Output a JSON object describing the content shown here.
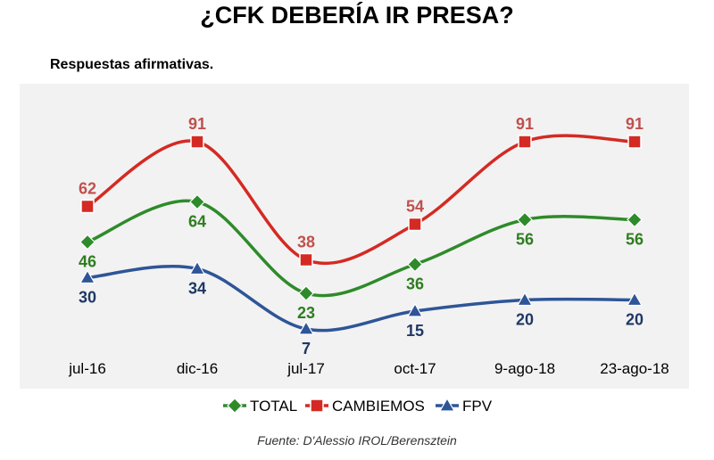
{
  "title": "¿CFK DEBERÍA IR PRESA?",
  "subtitle": "Respuestas afirmativas.",
  "source": "Fuente: D'Alessio IROL/Berensztein",
  "chart_data": {
    "type": "line",
    "categories": [
      "jul-16",
      "dic-16",
      "jul-17",
      "oct-17",
      "9-ago-18",
      "23-ago-18"
    ],
    "series": [
      {
        "name": "CAMBIEMOS",
        "values": [
          62,
          91,
          38,
          54,
          91,
          91
        ],
        "color": "#d42a23",
        "label_color": "#c0504d",
        "marker": "square",
        "label_pos": "above"
      },
      {
        "name": "TOTAL",
        "values": [
          46,
          64,
          23,
          36,
          56,
          56
        ],
        "color": "#2e8b2a",
        "label_color": "#2e7d1f",
        "marker": "diamond",
        "label_pos": "below"
      },
      {
        "name": "FPV",
        "values": [
          30,
          34,
          7,
          15,
          20,
          20
        ],
        "color": "#2e5597",
        "label_color": "#1f3864",
        "marker": "triangle",
        "label_pos": "below"
      }
    ],
    "legend_order": [
      "TOTAL",
      "CAMBIEMOS",
      "FPV"
    ],
    "ylim": [
      0,
      100
    ],
    "grid": false,
    "legend": "bottom",
    "plot_background": "#f2f2f2"
  }
}
